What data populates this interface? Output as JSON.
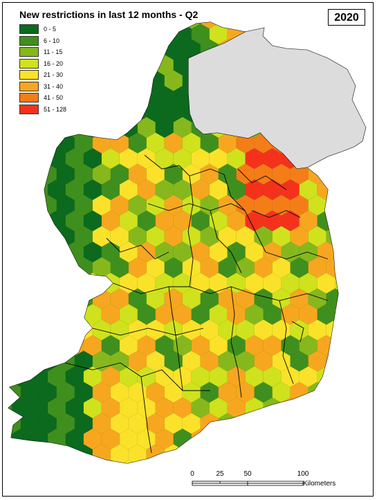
{
  "title": "New restrictions in last 12 months - Q2",
  "year": "2020",
  "legend": {
    "classes": [
      {
        "label": "0 - 5",
        "color": "#0b6a1d"
      },
      {
        "label": "6 - 10",
        "color": "#3f8f1e"
      },
      {
        "label": "11 - 15",
        "color": "#86b81d"
      },
      {
        "label": "16 - 20",
        "color": "#cfe21d"
      },
      {
        "label": "21 - 30",
        "color": "#fbe22a"
      },
      {
        "label": "31 - 40",
        "color": "#f7a71f"
      },
      {
        "label": "41 - 50",
        "color": "#f57d18"
      },
      {
        "label": "51 - 128",
        "color": "#f4321c"
      }
    ]
  },
  "scale": {
    "ticks": [
      "0",
      "25",
      "50",
      "100"
    ],
    "unit": "Kilometers"
  },
  "colors": {
    "northern_ireland": "#dcdcdc",
    "sea": "#ffffff",
    "boundary": "#000000"
  }
}
